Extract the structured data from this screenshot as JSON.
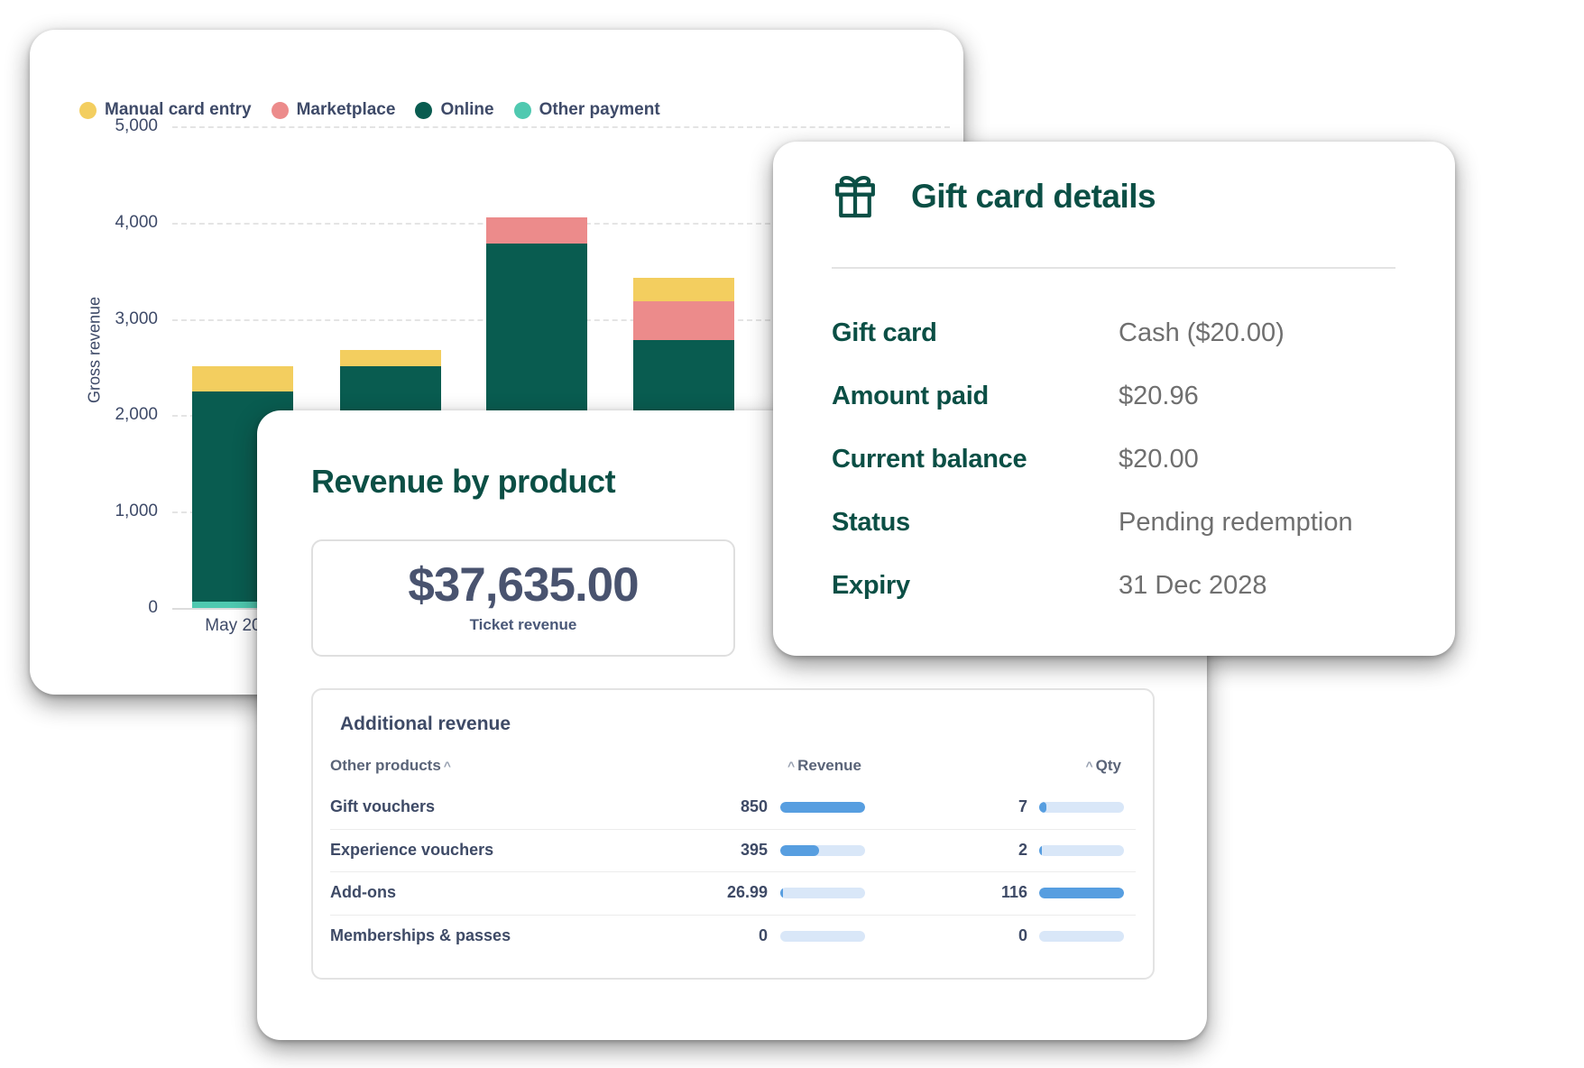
{
  "colors": {
    "accent_teal": "#0B4F45",
    "slate": "#3E4A68",
    "value_gray": "#6F6F6F",
    "bar_blue": "#579EE0",
    "bar_track": "#D9E7F8"
  },
  "legend": {
    "items": [
      {
        "label": "Manual card entry",
        "color": "#F3CE5F"
      },
      {
        "label": "Marketplace",
        "color": "#EC8B8B"
      },
      {
        "label": "Online",
        "color": "#095C50"
      },
      {
        "label": "Other payment",
        "color": "#4FC9B0"
      }
    ]
  },
  "chart_data": {
    "type": "bar",
    "stacked": true,
    "ylabel": "Gross revenue",
    "ylim": [
      0,
      5000
    ],
    "yticks": [
      5000,
      4000,
      3000,
      2000,
      1000,
      0
    ],
    "ytick_labels": [
      "5,000",
      "4,000",
      "3,000",
      "2,000",
      "1,000",
      "0"
    ],
    "grid": "dashed horizontal",
    "legend_position": "top",
    "categories": [
      "May 2024",
      "",
      "",
      ""
    ],
    "series": [
      {
        "name": "Manual card entry",
        "color": "#F3CE5F",
        "values": [
          265,
          170,
          0,
          245
        ]
      },
      {
        "name": "Marketplace",
        "color": "#EC8B8B",
        "values": [
          0,
          0,
          270,
          395
        ]
      },
      {
        "name": "Online",
        "color": "#095C50",
        "values": [
          2180,
          2510,
          3780,
          2785
        ]
      },
      {
        "name": "Other payment",
        "color": "#4FC9B0",
        "values": [
          65,
          0,
          0,
          0
        ]
      }
    ]
  },
  "gift_card": {
    "title": "Gift card details",
    "icon": "gift-icon",
    "rows": [
      {
        "label": "Gift card",
        "value": "Cash ($20.00)"
      },
      {
        "label": "Amount paid",
        "value": "$20.96"
      },
      {
        "label": "Current balance",
        "value": "$20.00"
      },
      {
        "label": "Status",
        "value": "Pending redemption"
      },
      {
        "label": "Expiry",
        "value": "31 Dec 2028"
      }
    ]
  },
  "revenue_card": {
    "title": "Revenue by product",
    "summary": {
      "amount": "$37,635.00",
      "caption": "Ticket revenue"
    },
    "table": {
      "title": "Additional revenue",
      "columns": [
        "Other products",
        "Revenue",
        "Qty"
      ],
      "sort_caret": "^",
      "rows": [
        {
          "product": "Gift vouchers",
          "revenue": "850",
          "revenue_pct": 100,
          "qty": "7",
          "qty_pct": 8
        },
        {
          "product": "Experience vouchers",
          "revenue": "395",
          "revenue_pct": 46,
          "qty": "2",
          "qty_pct": 3
        },
        {
          "product": "Add-ons",
          "revenue": "26.99",
          "revenue_pct": 3,
          "qty": "116",
          "qty_pct": 100
        },
        {
          "product": "Memberships & passes",
          "revenue": "0",
          "revenue_pct": 0,
          "qty": "0",
          "qty_pct": 0
        }
      ]
    }
  }
}
